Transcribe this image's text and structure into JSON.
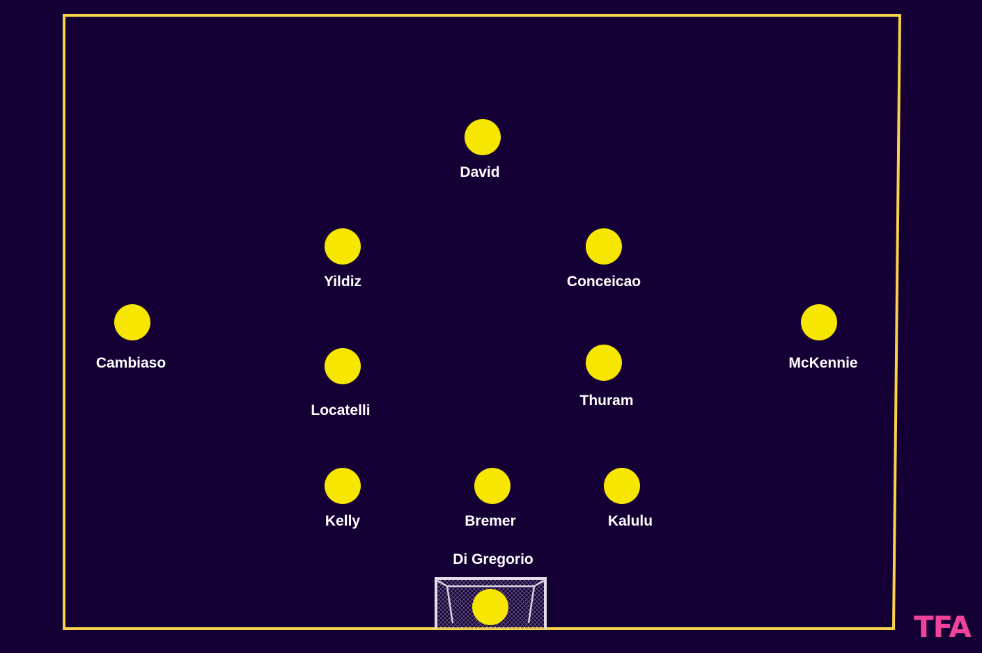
{
  "colors": {
    "background": "#150035",
    "pitch_line": "#f7d24a",
    "player_dot": "#f7e600",
    "label": "#ffffff",
    "logo": "#f0449a"
  },
  "players": [
    {
      "name": "David"
    },
    {
      "name": "Yildiz"
    },
    {
      "name": "Conceicao"
    },
    {
      "name": "Cambiaso"
    },
    {
      "name": "McKennie"
    },
    {
      "name": "Locatelli"
    },
    {
      "name": "Thuram"
    },
    {
      "name": "Kelly"
    },
    {
      "name": "Bremer"
    },
    {
      "name": "Kalulu"
    },
    {
      "name": "Di Gregorio"
    }
  ],
  "logo": {
    "text": "TFA"
  }
}
